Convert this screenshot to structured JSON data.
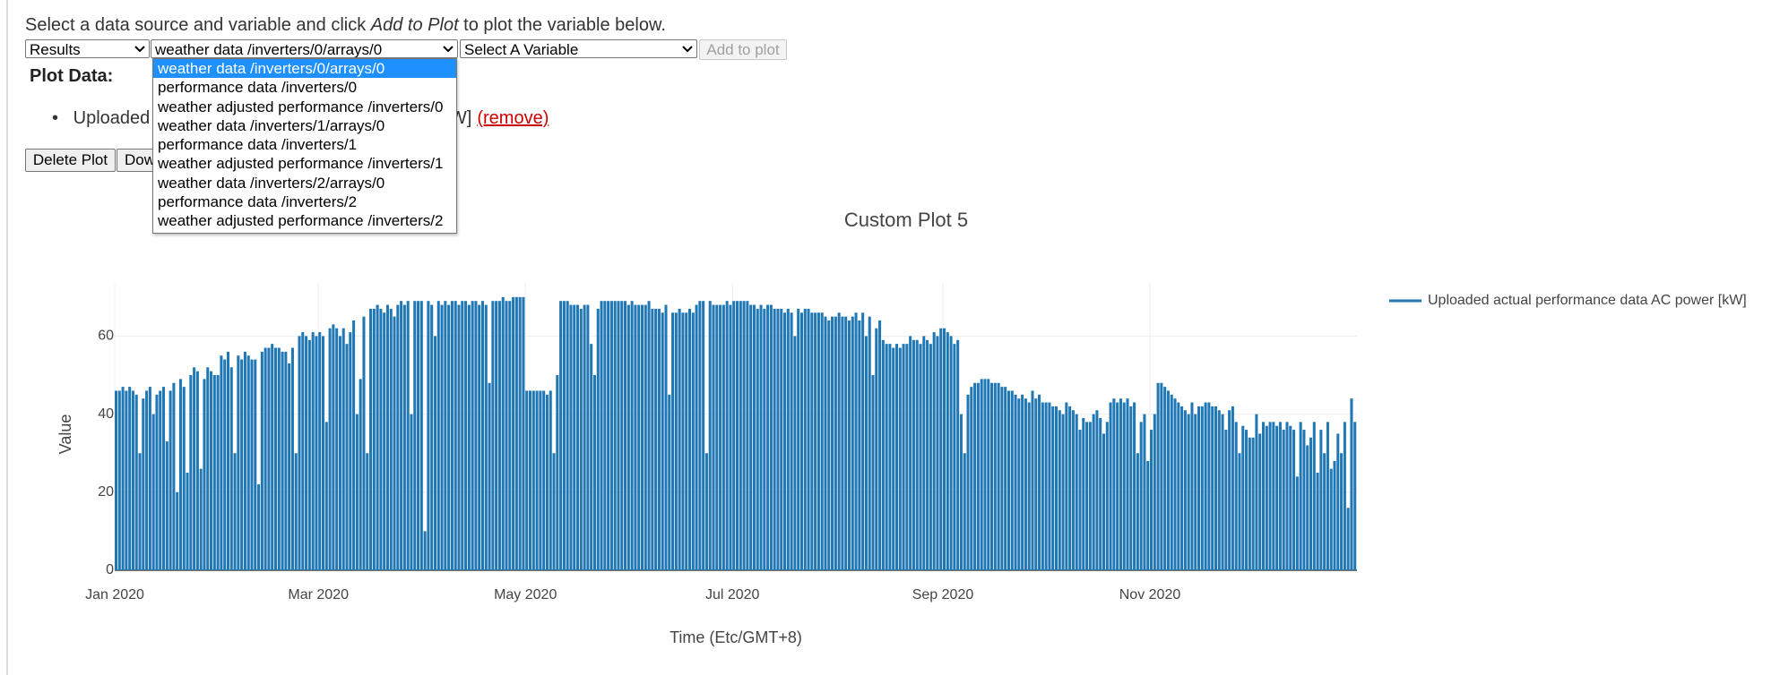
{
  "ui": {
    "instruction": {
      "before": "Select a data source and variable and click ",
      "emphasis": "Add to Plot",
      "after": " to plot the variable below."
    },
    "source_select": "Results",
    "dataset_select": "weather data /inverters/0/arrays/0",
    "variable_select": "Select A Variable",
    "add_button": "Add to plot",
    "dropdown_options": [
      "weather data /inverters/0/arrays/0",
      "performance data /inverters/0",
      "weather adjusted performance /inverters/0",
      "weather data /inverters/1/arrays/0",
      "performance data /inverters/1",
      "weather adjusted performance /inverters/1",
      "weather data /inverters/2/arrays/0",
      "performance data /inverters/2",
      "weather adjusted performance /inverters/2"
    ],
    "plot_data_heading": "Plot Data:",
    "plot_item": "Uploaded actual performance data AC power [kW]",
    "remove_link": "(remove)",
    "delete_button": "Delete Plot",
    "download_button": "Download"
  },
  "chart_data": {
    "type": "line",
    "title": "Custom Plot 5",
    "x_label": "Time (Etc/GMT+8)",
    "y_label": "Value",
    "x": [
      0,
      1,
      2,
      3,
      4,
      5,
      6,
      7,
      8,
      9,
      10,
      11,
      12,
      13,
      14,
      15,
      16,
      17,
      18,
      19,
      20,
      21,
      22,
      23,
      24,
      25,
      26,
      27,
      28,
      29,
      30,
      31,
      32,
      33,
      34,
      35,
      36,
      37,
      38,
      39,
      40,
      41,
      42,
      43,
      44,
      45,
      46,
      47,
      48,
      49,
      50,
      51,
      52,
      53,
      54,
      55,
      56,
      57,
      58,
      59,
      60,
      61,
      62,
      63,
      64,
      65,
      66,
      67,
      68,
      69,
      70,
      71,
      72,
      73,
      74,
      75,
      76,
      77,
      78,
      79,
      80,
      81,
      82,
      83,
      84,
      85,
      86,
      87,
      88,
      89,
      90,
      91,
      92,
      93,
      94,
      95,
      96,
      97,
      98,
      99,
      100,
      101,
      102,
      103,
      104,
      105,
      106,
      107,
      108,
      109,
      110,
      111,
      112,
      113,
      114,
      115,
      116,
      117,
      118,
      119,
      120,
      121,
      122,
      123,
      124,
      125,
      126,
      127,
      128,
      129,
      130,
      131,
      132,
      133,
      134,
      135,
      136,
      137,
      138,
      139,
      140,
      141,
      142,
      143,
      144,
      145,
      146,
      147,
      148,
      149,
      150,
      151,
      152,
      153,
      154,
      155,
      156,
      157,
      158,
      159,
      160,
      161,
      162,
      163,
      164,
      165,
      166,
      167,
      168,
      169,
      170,
      171,
      172,
      173,
      174,
      175,
      176,
      177,
      178,
      179,
      180,
      181,
      182,
      183,
      184,
      185,
      186,
      187,
      188,
      189,
      190,
      191,
      192,
      193,
      194,
      195,
      196,
      197,
      198,
      199,
      200,
      201,
      202,
      203,
      204,
      205,
      206,
      207,
      208,
      209,
      210,
      211,
      212,
      213,
      214,
      215,
      216,
      217,
      218,
      219,
      220,
      221,
      222,
      223,
      224,
      225,
      226,
      227,
      228,
      229,
      230,
      231,
      232,
      233,
      234,
      235,
      236,
      237,
      238,
      239,
      240,
      241,
      242,
      243,
      244,
      245,
      246,
      247,
      248,
      249,
      250,
      251,
      252,
      253,
      254,
      255,
      256,
      257,
      258,
      259,
      260,
      261,
      262,
      263,
      264,
      265,
      266,
      267,
      268,
      269,
      270,
      271,
      272,
      273,
      274,
      275,
      276,
      277,
      278,
      279,
      280,
      281,
      282,
      283,
      284,
      285,
      286,
      287,
      288,
      289,
      290,
      291,
      292,
      293,
      294,
      295,
      296,
      297,
      298,
      299,
      300,
      301,
      302,
      303,
      304,
      305,
      306,
      307,
      308,
      309,
      310,
      311,
      312,
      313,
      314,
      315,
      316,
      317,
      318,
      319,
      320,
      321,
      322,
      323,
      324,
      325,
      326,
      327,
      328,
      329,
      330,
      331,
      332,
      333,
      334,
      335,
      336,
      337,
      338,
      339,
      340,
      341,
      342,
      343,
      344,
      345,
      346,
      347,
      348,
      349,
      350,
      351,
      352,
      353,
      354,
      355,
      356,
      357,
      358,
      359,
      360,
      361,
      362,
      363,
      364,
      365
    ],
    "series": [
      {
        "name": "Uploaded actual performance data AC power [kW]",
        "color": "#1f77b4",
        "values": [
          46,
          46,
          47,
          46,
          47,
          46,
          45,
          30,
          44,
          46,
          47,
          40,
          45,
          46,
          47,
          33,
          46,
          48,
          20,
          49,
          47,
          25,
          50,
          52,
          51,
          26,
          49,
          52,
          51,
          50,
          50,
          55,
          54,
          56,
          52,
          30,
          55,
          54,
          56,
          55,
          54,
          54,
          22,
          56,
          57,
          57,
          58,
          57,
          57,
          56,
          56,
          53,
          57,
          30,
          60,
          61,
          60,
          59,
          61,
          60,
          61,
          60,
          38,
          62,
          63,
          62,
          60,
          62,
          58,
          61,
          64,
          40,
          49,
          65,
          30,
          67,
          67,
          68,
          67,
          66,
          68,
          67,
          65,
          68,
          69,
          68,
          69,
          40,
          69,
          69,
          69,
          10,
          69,
          68,
          60,
          69,
          68,
          69,
          68,
          69,
          69,
          68,
          69,
          69,
          68,
          69,
          69,
          68,
          69,
          68,
          48,
          69,
          69,
          69,
          70,
          69,
          69,
          70,
          70,
          70,
          70,
          46,
          46,
          46,
          46,
          46,
          46,
          45,
          46,
          30,
          50,
          69,
          69,
          69,
          68,
          68,
          68,
          67,
          68,
          68,
          58,
          50,
          67,
          69,
          69,
          69,
          69,
          69,
          69,
          69,
          69,
          68,
          69,
          68,
          68,
          68,
          68,
          69,
          67,
          67,
          67,
          66,
          68,
          45,
          66,
          66,
          67,
          66,
          66,
          67,
          66,
          68,
          69,
          69,
          30,
          69,
          68,
          68,
          68,
          68,
          69,
          68,
          69,
          69,
          69,
          69,
          69,
          68,
          68,
          67,
          68,
          67,
          68,
          68,
          67,
          67,
          67,
          66,
          67,
          66,
          60,
          67,
          66,
          67,
          67,
          66,
          66,
          66,
          66,
          65,
          64,
          65,
          65,
          66,
          65,
          65,
          64,
          65,
          66,
          64,
          66,
          60,
          65,
          50,
          62,
          64,
          59,
          58,
          58,
          57,
          58,
          57,
          58,
          58,
          60,
          59,
          59,
          58,
          60,
          59,
          58,
          61,
          60,
          62,
          62,
          61,
          60,
          58,
          59,
          40,
          30,
          45,
          47,
          48,
          48,
          49,
          49,
          49,
          48,
          48,
          48,
          47,
          47,
          46,
          46,
          45,
          44,
          45,
          44,
          43,
          46,
          44,
          45,
          43,
          43,
          43,
          42,
          42,
          41,
          40,
          43,
          42,
          41,
          40,
          36,
          39,
          38,
          38,
          40,
          41,
          39,
          35,
          38,
          43,
          44,
          43,
          44,
          43,
          44,
          42,
          43,
          30,
          38,
          40,
          28,
          36,
          40,
          48,
          48,
          47,
          46,
          45,
          44,
          43,
          42,
          41,
          40,
          43,
          40,
          42,
          42,
          43,
          43,
          42,
          42,
          41,
          40,
          36,
          41,
          42,
          38,
          30,
          37,
          36,
          34,
          34,
          40,
          35,
          38,
          37,
          38,
          38,
          37,
          38,
          36,
          38,
          37,
          36,
          24,
          38,
          36,
          32,
          34,
          38,
          25,
          36,
          30,
          38,
          26,
          28,
          35,
          30,
          38,
          16,
          44,
          38
        ]
      }
    ],
    "xlim": [
      0,
      366
    ],
    "xticks": [
      {
        "value": 0,
        "label": "Jan 2020"
      },
      {
        "value": 60,
        "label": "Mar 2020"
      },
      {
        "value": 121,
        "label": "May 2020"
      },
      {
        "value": 182,
        "label": "Jul 2020"
      },
      {
        "value": 244,
        "label": "Sep 2020"
      },
      {
        "value": 305,
        "label": "Nov 2020"
      }
    ],
    "ylim": [
      0,
      73.4
    ],
    "yticks": [
      0,
      20,
      40,
      60
    ],
    "grid": true,
    "legend": "right"
  }
}
